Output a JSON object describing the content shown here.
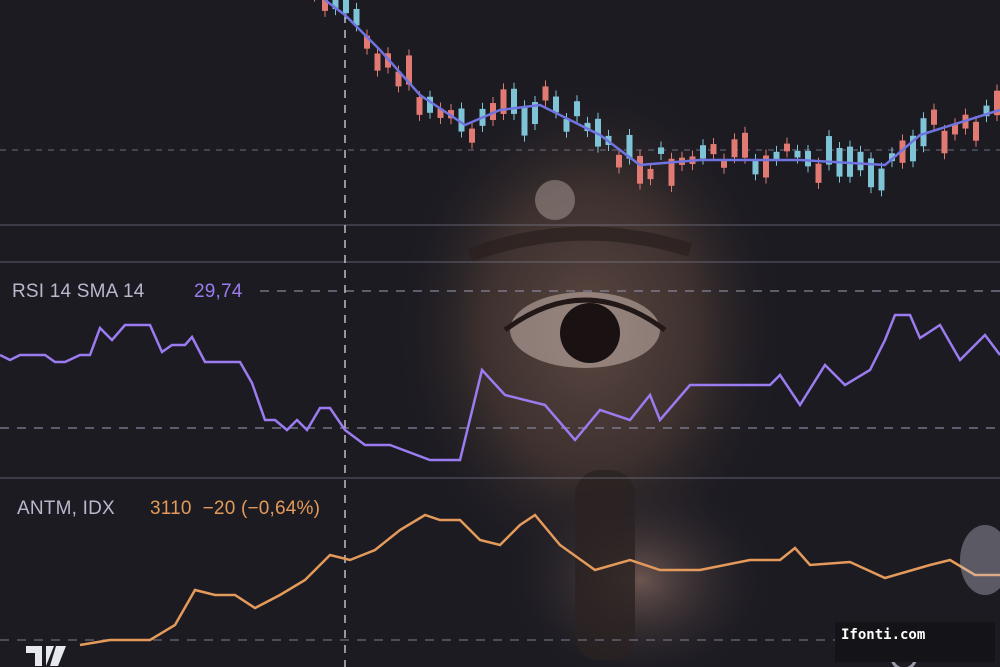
{
  "indicator": {
    "label": "RSI 14 SMA 14",
    "value": "29,74",
    "color": "#9b7cf0"
  },
  "instrument": {
    "ticker": "ANTM, IDX",
    "price": "3110",
    "change": "−20 (−0,64%)",
    "color": "#e49a5a"
  },
  "moving_average_color": "#6f74e0",
  "candle_colors": {
    "up": "#7ec3d6",
    "down": "#e07a72"
  },
  "watermark": "Ifonti.com",
  "icons": [
    "tradingview-logo-icon",
    "refresh-icon"
  ]
}
